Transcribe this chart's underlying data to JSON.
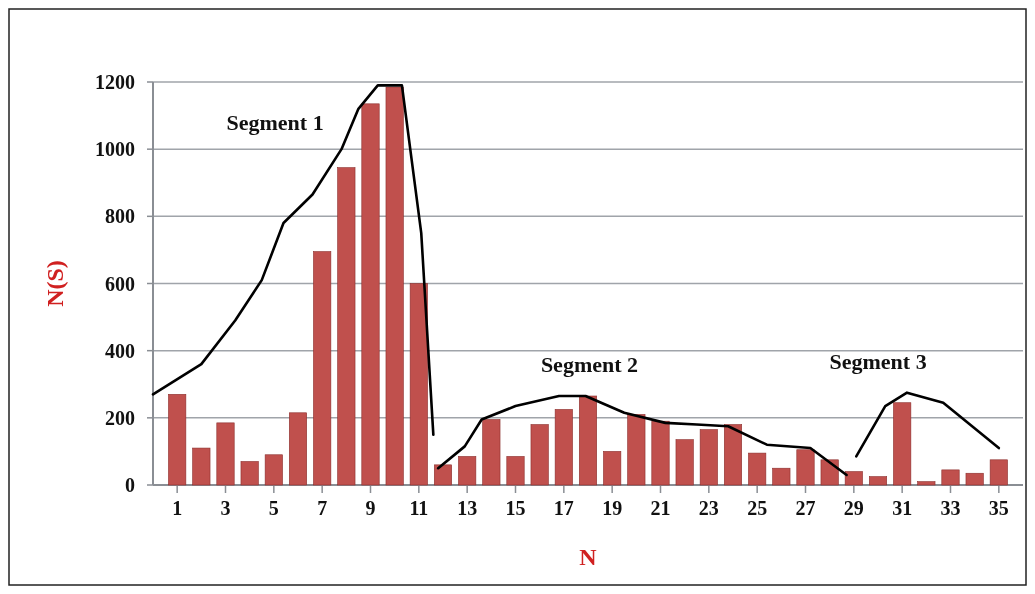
{
  "chart_data": {
    "type": "bar",
    "xlabel": "N",
    "ylabel": "N(S)",
    "x": [
      1,
      2,
      3,
      4,
      5,
      6,
      7,
      8,
      9,
      10,
      11,
      12,
      13,
      14,
      15,
      16,
      17,
      18,
      19,
      20,
      21,
      22,
      23,
      24,
      25,
      26,
      27,
      28,
      29,
      30,
      31,
      32,
      33,
      34,
      35
    ],
    "xlim": [
      0,
      36
    ],
    "xticks": [
      1,
      3,
      5,
      7,
      9,
      11,
      13,
      15,
      17,
      19,
      21,
      23,
      25,
      27,
      29,
      31,
      33,
      35
    ],
    "ylim": [
      0,
      1200
    ],
    "yticks": [
      0,
      200,
      400,
      600,
      800,
      1000,
      1200
    ],
    "grid": "y",
    "legend": false,
    "series": [
      {
        "color": "#c0504d",
        "values": [
          270,
          110,
          185,
          70,
          90,
          215,
          695,
          945,
          1135,
          1185,
          600,
          60,
          85,
          195,
          85,
          180,
          225,
          265,
          100,
          210,
          190,
          135,
          165,
          180,
          95,
          50,
          105,
          75,
          40,
          25,
          245,
          10,
          45,
          35,
          75
        ]
      },
      {
        "type": "line",
        "name": "Segment 1",
        "color": "#000000",
        "x": [
          0,
          2,
          3.4,
          4.5,
          5.4,
          6.6,
          7.8,
          8.5,
          9.3,
          10.3,
          11.1,
          11.6
        ],
        "values": [
          270,
          360,
          490,
          610,
          780,
          865,
          1000,
          1120,
          1190,
          1190,
          750,
          150
        ]
      },
      {
        "type": "line",
        "name": "Segment 2",
        "color": "#000000",
        "x": [
          11.8,
          12.9,
          13.6,
          15,
          16.8,
          17.9,
          19.5,
          21.2,
          22.5,
          23.8,
          25.4,
          27.2,
          28.7
        ],
        "values": [
          50,
          115,
          195,
          235,
          265,
          265,
          215,
          185,
          180,
          175,
          120,
          110,
          30
        ]
      },
      {
        "type": "line",
        "name": "Segment 3",
        "color": "#000000",
        "x": [
          29.1,
          30.3,
          31.2,
          32.7,
          35
        ],
        "values": [
          85,
          235,
          275,
          245,
          110
        ]
      }
    ]
  }
}
